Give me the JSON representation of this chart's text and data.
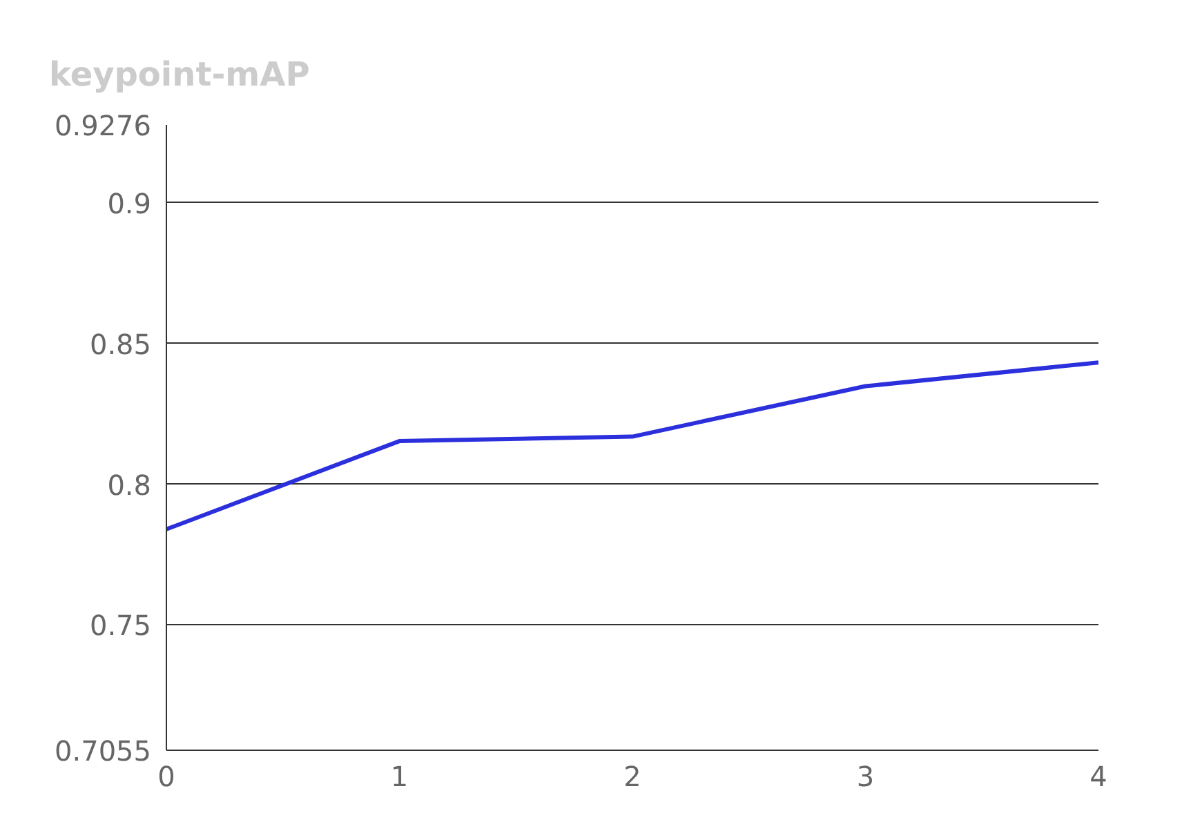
{
  "chart_data": {
    "type": "line",
    "title": "keypoint-mAP",
    "x": [
      0,
      1,
      2,
      3,
      4
    ],
    "series": [
      {
        "color": "#2b2fdc",
        "values": [
          0.784,
          0.8153,
          0.8169,
          0.8348,
          0.8432
        ]
      }
    ],
    "xlim": [
      0,
      4
    ],
    "xticks": [
      0,
      1,
      2,
      3,
      4
    ],
    "ylim": [
      0.7055,
      0.9276
    ],
    "yticks": [
      {
        "value": 0.7055,
        "label": "0.7055"
      },
      0.75,
      0.8,
      0.85,
      0.9,
      {
        "value": 0.9276,
        "label": "0.9276"
      }
    ],
    "grid": "y",
    "marker": "none",
    "line_style": "solid"
  }
}
